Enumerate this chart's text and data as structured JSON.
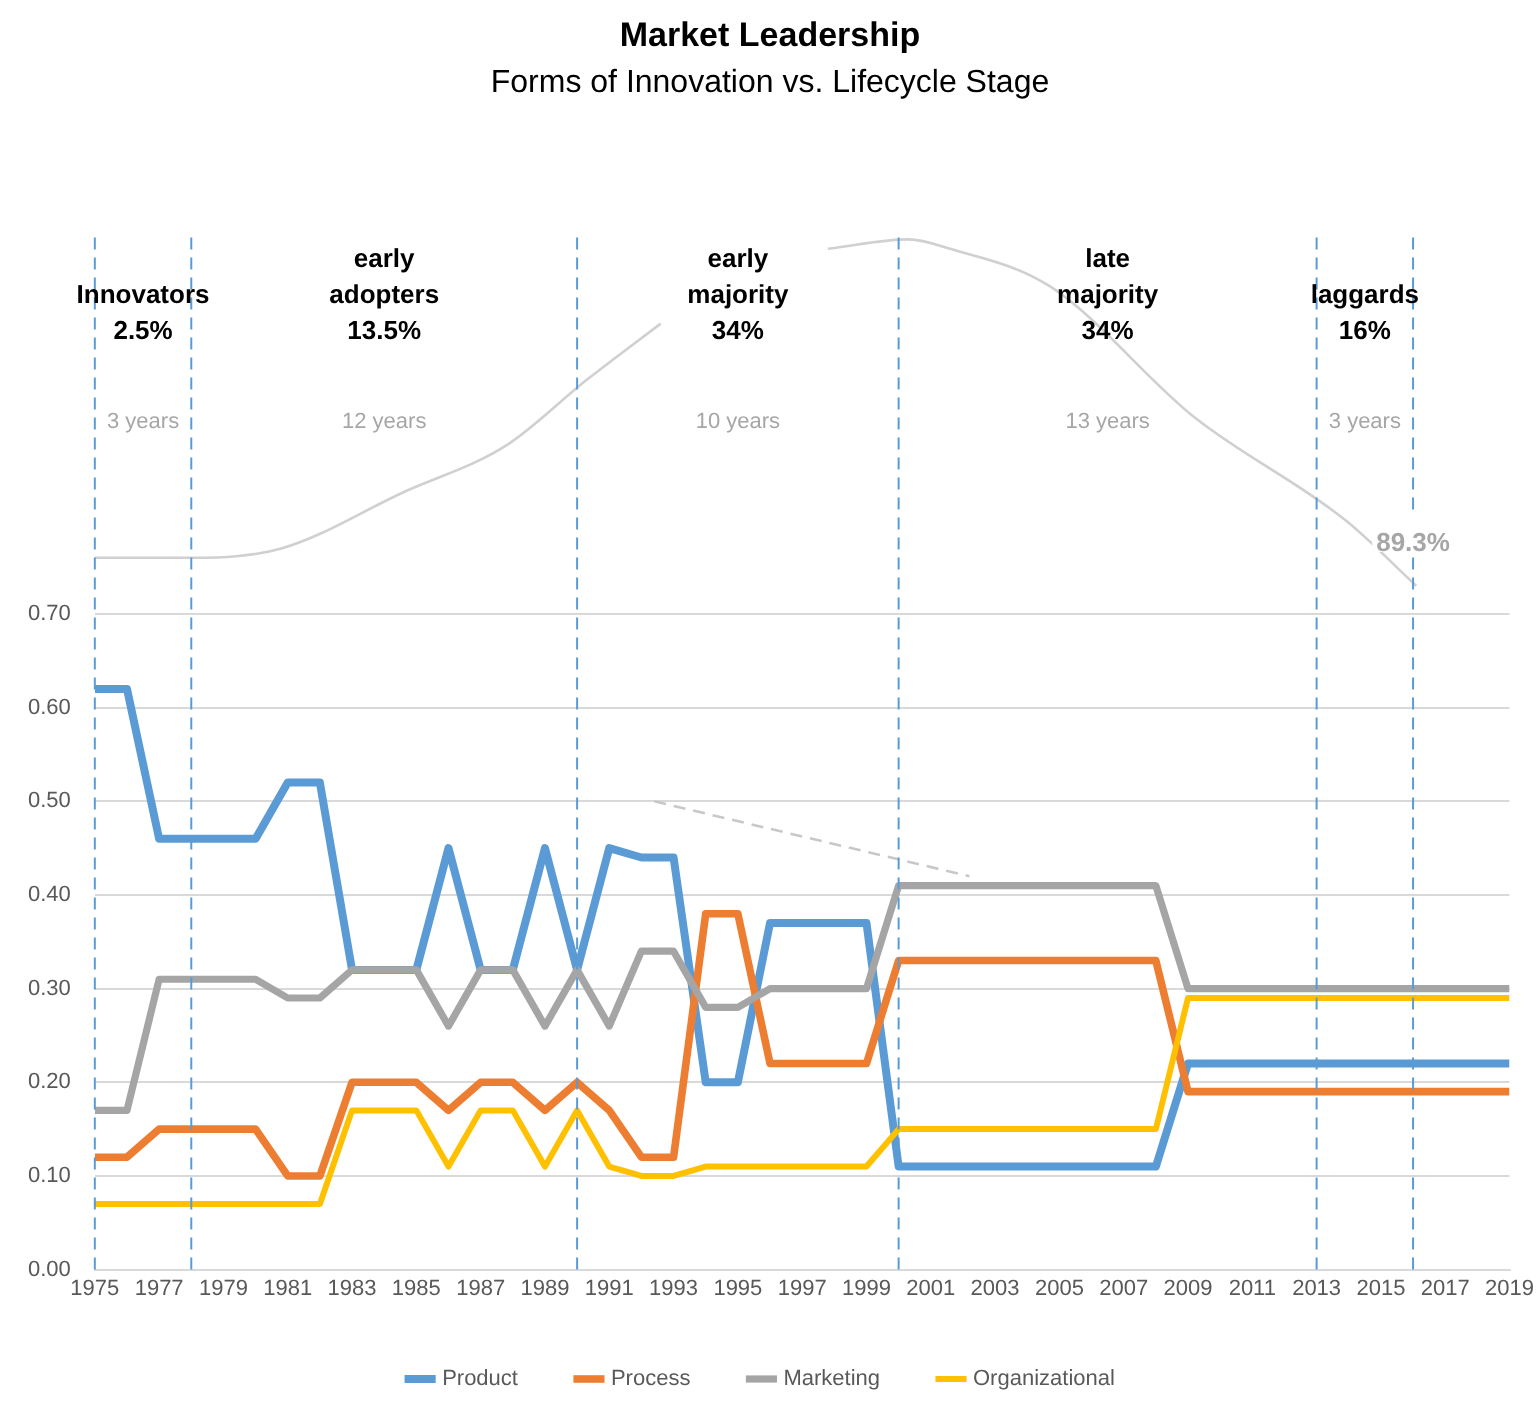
{
  "chart_data": {
    "type": "line",
    "title": "Market Leadership",
    "subtitle": "Forms of Innovation vs. Lifecycle Stage",
    "x": [
      1975,
      1976,
      1977,
      1978,
      1979,
      1980,
      1981,
      1982,
      1983,
      1984,
      1985,
      1986,
      1987,
      1988,
      1989,
      1990,
      1991,
      1992,
      1993,
      1994,
      1995,
      1996,
      1997,
      1998,
      1999,
      2000,
      2001,
      2002,
      2003,
      2004,
      2005,
      2006,
      2007,
      2008,
      2009,
      2010,
      2011,
      2012,
      2013,
      2014,
      2015,
      2016,
      2017,
      2018,
      2019
    ],
    "xlim": [
      1975,
      2019
    ],
    "xticks": [
      1975,
      1977,
      1979,
      1981,
      1983,
      1985,
      1987,
      1989,
      1991,
      1993,
      1995,
      1997,
      1999,
      2001,
      2003,
      2005,
      2007,
      2009,
      2011,
      2013,
      2015,
      2017,
      2019
    ],
    "ylim": [
      0,
      1.11
    ],
    "yticks": [
      {
        "value": 0,
        "label": "0.00"
      },
      {
        "value": 0.1,
        "label": "0.10"
      },
      {
        "value": 0.2,
        "label": "0.20"
      },
      {
        "value": 0.3,
        "label": "0.30"
      },
      {
        "value": 0.4,
        "label": "0.40"
      },
      {
        "value": 0.5,
        "label": "0.50"
      },
      {
        "value": 0.6,
        "label": "0.60"
      },
      {
        "value": 0.7,
        "label": "0.70"
      }
    ],
    "grid": "y",
    "legend": "bottom",
    "marker": "none",
    "line_style": "solid",
    "series": [
      {
        "name": "Product",
        "color": "#5b9bd5",
        "values": [
          0.62,
          0.62,
          0.46,
          0.46,
          0.46,
          0.46,
          0.52,
          0.52,
          0.32,
          0.32,
          0.32,
          0.45,
          0.32,
          0.32,
          0.45,
          0.32,
          0.45,
          0.44,
          0.44,
          0.2,
          0.2,
          0.37,
          0.37,
          0.37,
          0.37,
          0.11,
          0.11,
          0.11,
          0.11,
          0.11,
          0.11,
          0.11,
          0.11,
          0.11,
          0.22,
          0.22,
          0.22,
          0.22,
          0.22,
          0.22,
          0.22,
          0.22,
          0.22,
          0.22,
          0.22
        ]
      },
      {
        "name": "Process",
        "color": "#ed7d31",
        "values": [
          0.12,
          0.12,
          0.15,
          0.15,
          0.15,
          0.15,
          0.1,
          0.1,
          0.2,
          0.2,
          0.2,
          0.17,
          0.2,
          0.2,
          0.17,
          0.2,
          0.17,
          0.12,
          0.12,
          0.38,
          0.38,
          0.22,
          0.22,
          0.22,
          0.22,
          0.33,
          0.33,
          0.33,
          0.33,
          0.33,
          0.33,
          0.33,
          0.33,
          0.33,
          0.19,
          0.19,
          0.19,
          0.19,
          0.19,
          0.19,
          0.19,
          0.19,
          0.19,
          0.19,
          0.19
        ]
      },
      {
        "name": "Marketing",
        "color": "#a5a5a5",
        "values": [
          0.17,
          0.17,
          0.31,
          0.31,
          0.31,
          0.31,
          0.29,
          0.29,
          0.32,
          0.32,
          0.32,
          0.26,
          0.32,
          0.32,
          0.26,
          0.32,
          0.26,
          0.34,
          0.34,
          0.28,
          0.28,
          0.3,
          0.3,
          0.3,
          0.3,
          0.41,
          0.41,
          0.41,
          0.41,
          0.41,
          0.41,
          0.41,
          0.41,
          0.41,
          0.3,
          0.3,
          0.3,
          0.3,
          0.3,
          0.3,
          0.3,
          0.3,
          0.3,
          0.3,
          0.3
        ]
      },
      {
        "type": "line",
        "color": "#d0d0d0",
        "x": [
          1975,
          1978,
          1980.8,
          1984.6,
          1987.8,
          1990.3,
          1992.6,
          1995,
          1997.8,
          2000.3,
          2001.6,
          2004.7,
          2009.2,
          2013.9,
          2016.1
        ],
        "values": [
          0.76,
          0.76,
          0.77,
          0.83,
          0.88,
          0.95,
          1.01,
          null,
          1.09,
          1.1,
          1.09,
          1.05,
          0.91,
          0.8,
          0.73
        ]
      },
      {
        "type": "line",
        "color": "#c8c8c8",
        "line_style": "dashed",
        "x": [
          1992.4,
          2002.2
        ],
        "values": [
          0.5,
          0.42
        ]
      },
      {
        "name": "Organizational",
        "color": "#ffc000",
        "values": [
          0.07,
          0.07,
          0.07,
          0.07,
          0.07,
          0.07,
          0.07,
          0.07,
          0.17,
          0.17,
          0.17,
          0.11,
          0.17,
          0.17,
          0.11,
          0.17,
          0.11,
          0.1,
          0.1,
          0.11,
          0.11,
          0.11,
          0.11,
          0.11,
          0.11,
          0.15,
          0.15,
          0.15,
          0.15,
          0.15,
          0.15,
          0.15,
          0.15,
          0.15,
          0.29,
          0.29,
          0.29,
          0.29,
          0.29,
          0.29,
          0.29,
          0.29,
          0.29,
          0.29,
          0.29
        ]
      }
    ],
    "ref_lines": [
      {
        "axis": "x",
        "value": 1975,
        "color": "#5b9bd5",
        "line_style": "dashed"
      },
      {
        "axis": "x",
        "value": 1978,
        "color": "#5b9bd5",
        "line_style": "dashed"
      },
      {
        "axis": "x",
        "value": 1990,
        "color": "#5b9bd5",
        "line_style": "dashed"
      },
      {
        "axis": "x",
        "value": 2000,
        "color": "#5b9bd5",
        "line_style": "dashed"
      },
      {
        "axis": "x",
        "value": 2013,
        "color": "#5b9bd5",
        "line_style": "dashed"
      },
      {
        "axis": "x",
        "value": 2016,
        "color": "#5b9bd5",
        "line_style": "dashed"
      }
    ],
    "annotations": [
      "Innovators\n2.5%",
      "early\nadopters\n13.5%",
      "early\nmajority\n34%",
      "late\nmajority\n34%",
      "laggards\n16%",
      "3 years",
      "12 years",
      "10 years",
      "13 years",
      "3 years",
      "89.3%"
    ]
  }
}
